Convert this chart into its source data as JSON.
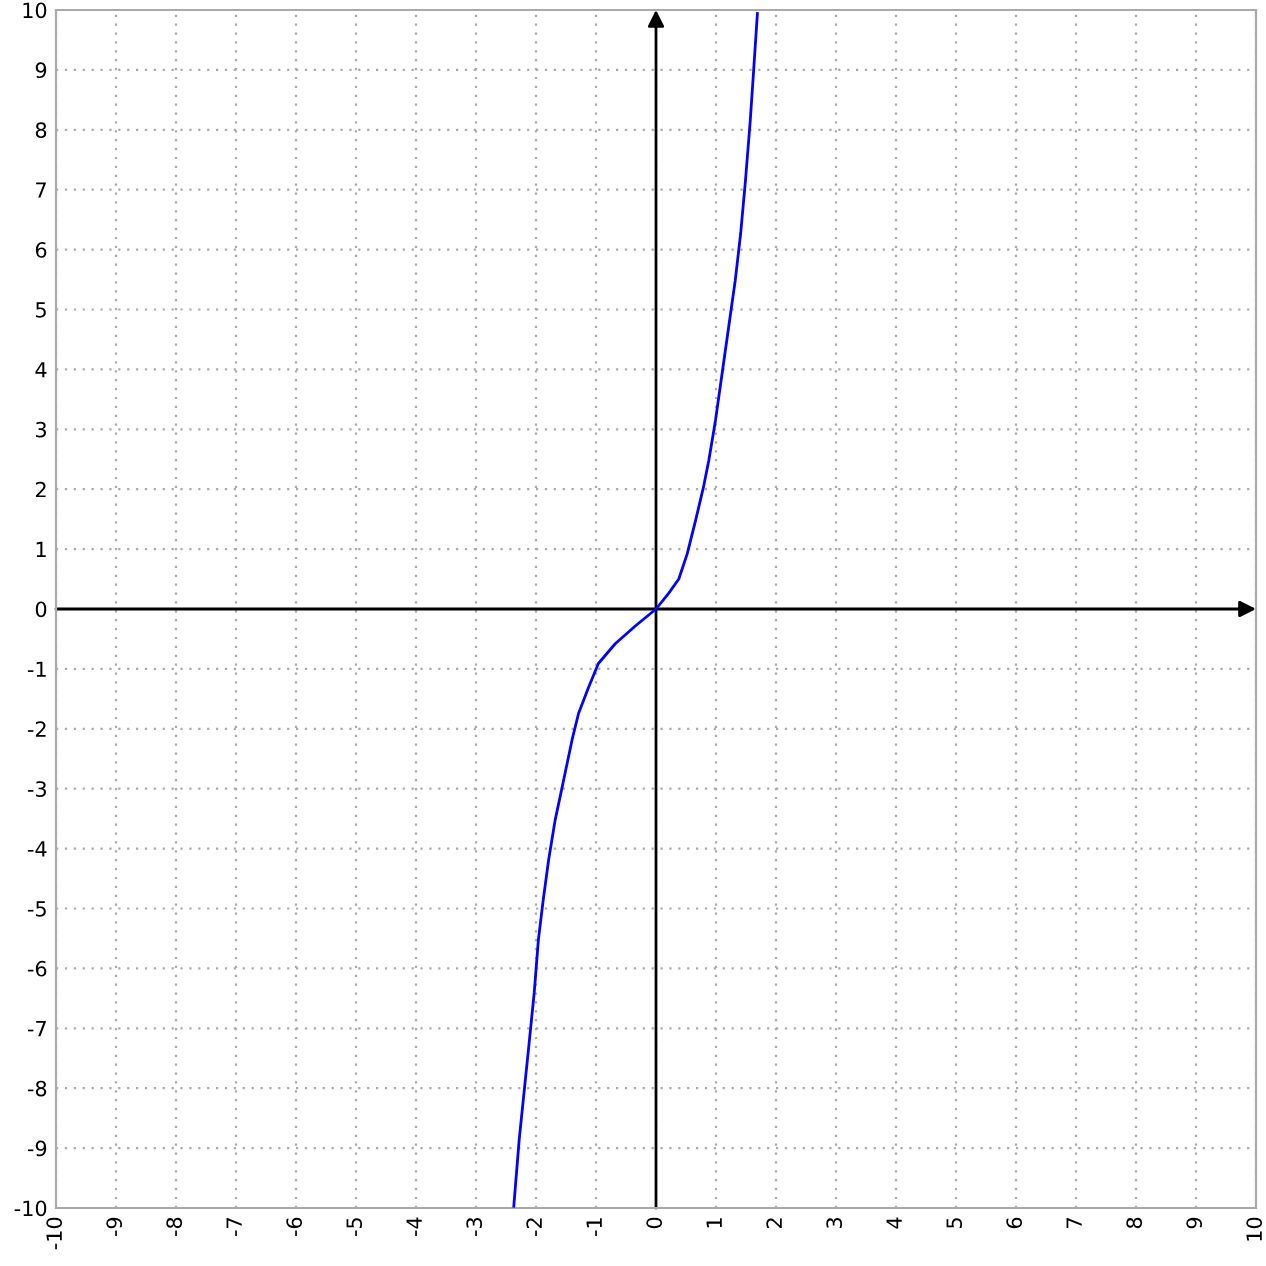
{
  "chart_data": {
    "type": "line",
    "x": [
      -2.37,
      -2.28,
      -2.2,
      -2.12,
      -2.03,
      -1.96,
      -1.88,
      -1.79,
      -1.68,
      -1.54,
      -1.4,
      -1.29,
      -1.12,
      -0.96,
      -0.68,
      -0.34,
      0,
      0.21,
      0.38,
      0.52,
      0.66,
      0.79,
      0.88,
      0.99,
      1.1,
      1.21,
      1.32,
      1.41,
      1.49,
      1.57,
      1.63,
      1.69
    ],
    "series": [
      {
        "color": "#0000ff",
        "values": [
          -9.97,
          -8.86,
          -8.08,
          -7.3,
          -6.41,
          -5.52,
          -4.86,
          -4.19,
          -3.52,
          -2.86,
          -2.19,
          -1.74,
          -1.3,
          -0.91,
          -0.58,
          -0.28,
          0,
          0.26,
          0.5,
          0.92,
          1.48,
          2.03,
          2.48,
          3.14,
          3.92,
          4.7,
          5.48,
          6.26,
          7.14,
          8.14,
          9.03,
          9.94
        ]
      }
    ],
    "xlim": [
      -10,
      10
    ],
    "ylim": [
      -10,
      10
    ],
    "xticks": [
      -10,
      -9,
      -8,
      -7,
      -6,
      -5,
      -4,
      -3,
      -2,
      -1,
      0,
      1,
      2,
      3,
      4,
      5,
      6,
      7,
      8,
      9,
      10
    ],
    "yticks": [
      -10,
      -9,
      -8,
      -7,
      -6,
      -5,
      -4,
      -3,
      -2,
      -1,
      0,
      1,
      2,
      3,
      4,
      5,
      6,
      7,
      8,
      9,
      10
    ],
    "grid": true,
    "marker": "none",
    "line_style": "solid"
  }
}
